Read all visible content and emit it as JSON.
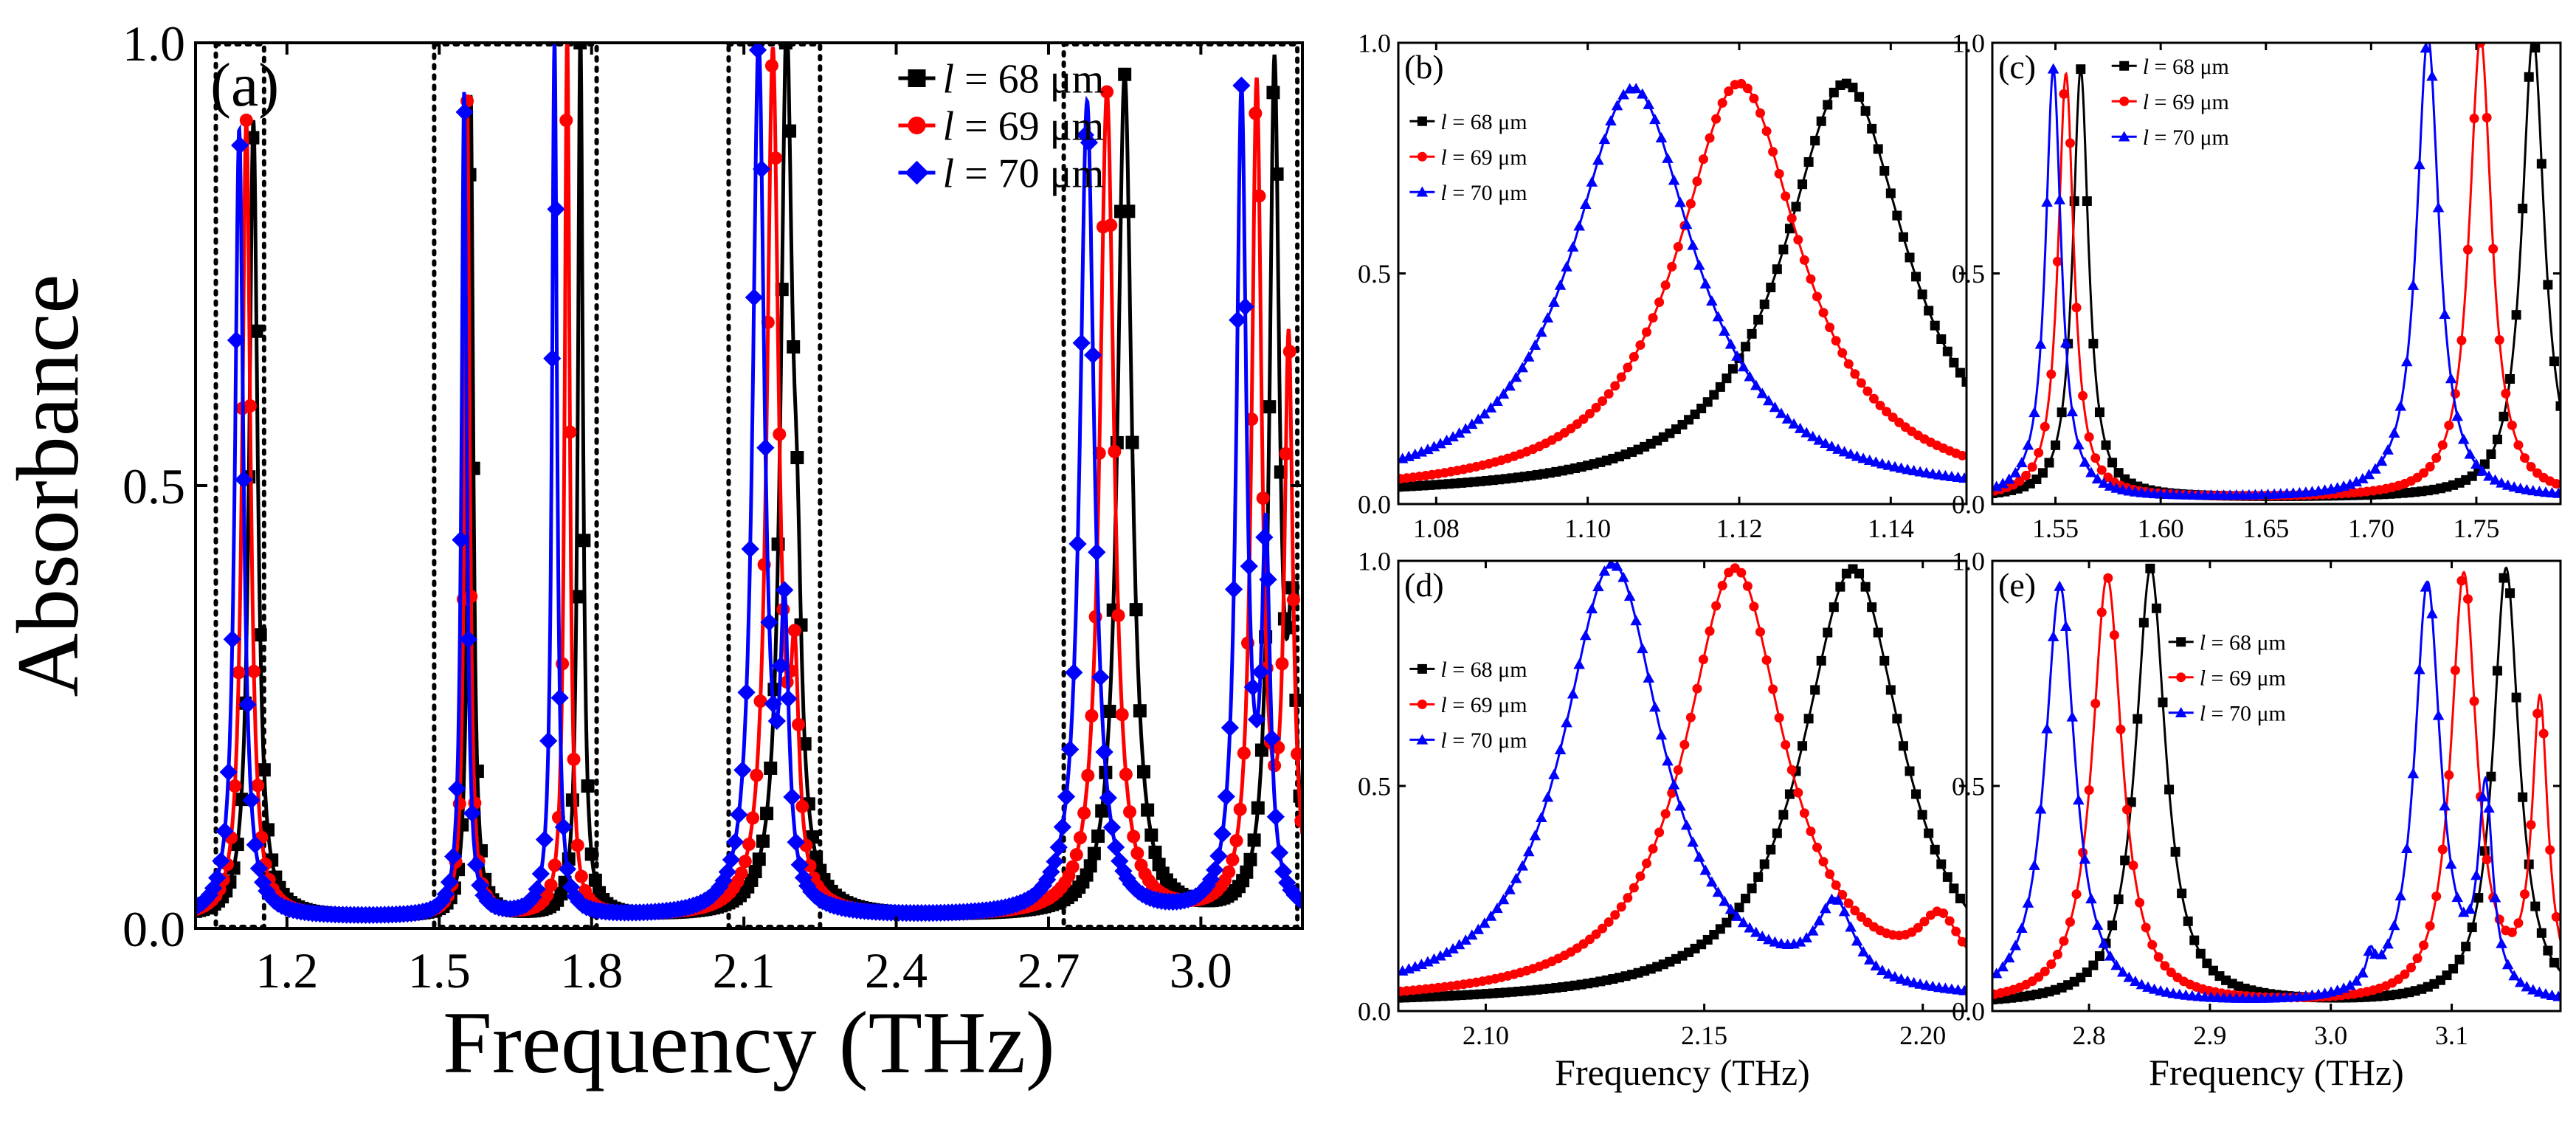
{
  "colors": {
    "l68": "#000000",
    "l69": "#ff0000",
    "l70": "#0000ff"
  },
  "chart_data": [
    {
      "id": "a",
      "panel_label": "(a)",
      "type": "line",
      "xlabel": "Frequency (THz)",
      "ylabel": "Absorbance",
      "xlim": [
        1.02,
        3.2
      ],
      "ylim": [
        0.0,
        1.0
      ],
      "xticks": [
        "1.2",
        "1.5",
        "1.8",
        "2.1",
        "2.4",
        "2.7",
        "3.0"
      ],
      "yticks": [
        "0.0",
        "0.5",
        "1.0"
      ],
      "legend_position": "top-right",
      "marker_style": [
        "square",
        "circle",
        "diamond"
      ],
      "highlight_boxes": [
        [
          1.06,
          1.155
        ],
        [
          1.49,
          1.81
        ],
        [
          2.07,
          2.25
        ],
        [
          2.73,
          3.19
        ]
      ],
      "series": [
        {
          "name": "l = 68 μm",
          "peaks": [
            [
              1.134,
              0.9,
              0.01
            ],
            [
              1.562,
              0.93,
              0.006
            ],
            [
              1.778,
              1.0,
              0.006
            ],
            [
              2.184,
              0.97,
              0.014
            ],
            [
              2.205,
              0.22,
              0.01
            ],
            [
              2.85,
              0.95,
              0.017
            ],
            [
              3.145,
              0.95,
              0.012
            ],
            [
              3.18,
              0.27,
              0.01
            ]
          ]
        },
        {
          "name": "l = 69 μm",
          "peaks": [
            [
              1.12,
              0.9,
              0.01
            ],
            [
              1.555,
              0.92,
              0.006
            ],
            [
              1.752,
              1.0,
              0.006
            ],
            [
              2.157,
              0.97,
              0.014
            ],
            [
              2.2,
              0.23,
              0.01
            ],
            [
              2.815,
              0.93,
              0.017
            ],
            [
              3.11,
              0.93,
              0.012
            ],
            [
              3.173,
              0.63,
              0.01
            ]
          ]
        },
        {
          "name": "l = 70 μm",
          "peaks": [
            [
              1.106,
              0.89,
              0.01
            ],
            [
              1.549,
              0.93,
              0.006
            ],
            [
              1.727,
              0.99,
              0.006
            ],
            [
              2.129,
              0.98,
              0.014
            ],
            [
              2.18,
              0.3,
              0.01
            ],
            [
              2.776,
              0.92,
              0.017
            ],
            [
              3.08,
              0.92,
              0.012
            ],
            [
              3.128,
              0.4,
              0.01
            ]
          ]
        }
      ]
    },
    {
      "id": "b",
      "panel_label": "(b)",
      "type": "line",
      "xlabel": "",
      "ylabel": "",
      "xlim": [
        1.075,
        1.15
      ],
      "ylim": [
        0.0,
        1.0
      ],
      "xticks": [
        "1.08",
        "1.10",
        "1.12",
        "1.14"
      ],
      "yticks": [
        "0.0",
        "0.5",
        "1.0"
      ],
      "legend_position": "top-left",
      "marker_style": [
        "square",
        "circle",
        "triangle"
      ],
      "series": [
        {
          "name": "l = 68 μm",
          "peaks": [
            [
              1.134,
              0.9,
              0.01
            ]
          ]
        },
        {
          "name": "l = 69 μm",
          "peaks": [
            [
              1.12,
              0.9,
              0.01
            ]
          ]
        },
        {
          "name": "l = 70 μm",
          "peaks": [
            [
              1.106,
              0.89,
              0.01
            ]
          ]
        }
      ]
    },
    {
      "id": "c",
      "panel_label": "(c)",
      "type": "line",
      "xlabel": "",
      "ylabel": "",
      "xlim": [
        1.52,
        1.79
      ],
      "ylim": [
        0.0,
        1.0
      ],
      "xticks": [
        "1.55",
        "1.60",
        "1.65",
        "1.70",
        "1.75"
      ],
      "yticks": [
        "0.0",
        "0.5",
        "1.0"
      ],
      "legend_position": "top-center",
      "marker_style": [
        "square",
        "circle",
        "triangle"
      ],
      "series": [
        {
          "name": "l = 68 μm",
          "peaks": [
            [
              1.562,
              0.93,
              0.0045
            ],
            [
              1.777,
              1.0,
              0.0065
            ]
          ]
        },
        {
          "name": "l = 69 μm",
          "peaks": [
            [
              1.555,
              0.92,
              0.0045
            ],
            [
              1.752,
              1.0,
              0.0065
            ]
          ]
        },
        {
          "name": "l = 70 μm",
          "peaks": [
            [
              1.549,
              0.93,
              0.0045
            ],
            [
              1.727,
              1.0,
              0.0065
            ]
          ]
        }
      ]
    },
    {
      "id": "d",
      "panel_label": "(d)",
      "type": "line",
      "xlabel": "Frequency (THz)",
      "ylabel": "",
      "xlim": [
        2.08,
        2.21
      ],
      "ylim": [
        0.0,
        1.0
      ],
      "xticks": [
        "2.10",
        "2.15",
        "2.20"
      ],
      "yticks": [
        "0.0",
        "0.5",
        "1.0"
      ],
      "legend_position": "left",
      "marker_style": [
        "square",
        "circle",
        "triangle"
      ],
      "series": [
        {
          "name": "l = 68 μm",
          "peaks": [
            [
              2.184,
              0.97,
              0.014
            ]
          ]
        },
        {
          "name": "l = 69 μm",
          "peaks": [
            [
              2.157,
              0.97,
              0.014
            ],
            [
              2.204,
              0.13,
              0.006
            ]
          ]
        },
        {
          "name": "l = 70 μm",
          "peaks": [
            [
              2.129,
              0.98,
              0.014
            ],
            [
              2.18,
              0.17,
              0.005
            ]
          ]
        }
      ]
    },
    {
      "id": "e",
      "panel_label": "(e)",
      "type": "line",
      "xlabel": "Frequency (THz)",
      "ylabel": "",
      "xlim": [
        2.72,
        3.19
      ],
      "ylim": [
        0.0,
        1.0
      ],
      "xticks": [
        "2.8",
        "2.9",
        "3.0",
        "3.1"
      ],
      "yticks": [
        "0.0",
        "0.5",
        "1.0"
      ],
      "legend_position": "top-center",
      "marker_style": [
        "square",
        "circle",
        "triangle"
      ],
      "series": [
        {
          "name": "l = 68 μm",
          "peaks": [
            [
              2.851,
              0.97,
              0.015
            ],
            [
              3.145,
              0.97,
              0.013
            ]
          ]
        },
        {
          "name": "l = 69 μm",
          "peaks": [
            [
              2.815,
              0.95,
              0.015
            ],
            [
              3.11,
              0.95,
              0.013
            ],
            [
              3.173,
              0.65,
              0.008
            ]
          ]
        },
        {
          "name": "l = 70 μm",
          "peaks": [
            [
              2.776,
              0.93,
              0.015
            ],
            [
              3.08,
              0.93,
              0.013
            ],
            [
              3.128,
              0.44,
              0.007
            ],
            [
              3.033,
              0.06,
              0.004
            ]
          ]
        }
      ]
    }
  ]
}
